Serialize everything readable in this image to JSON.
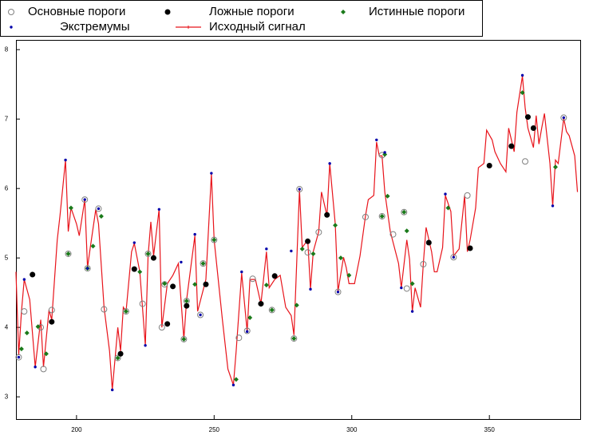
{
  "chart_data": {
    "type": "line",
    "xlim": [
      178,
      383
    ],
    "ylim": [
      2.68,
      8.14
    ],
    "xticks": [
      200,
      250,
      300,
      350
    ],
    "yticks": [
      3,
      4,
      5,
      6,
      7,
      8
    ],
    "series": [
      {
        "name": "Основные пороги",
        "type": "scatter",
        "marker": "open-circle",
        "color": "#808080",
        "x": [
          179,
          181,
          187,
          188,
          191,
          197,
          203,
          204,
          208,
          210,
          215,
          218,
          224,
          226,
          231,
          232,
          239,
          240,
          245,
          246,
          250,
          259,
          262,
          264,
          271,
          279,
          281,
          284,
          288,
          295,
          305,
          311,
          311,
          315,
          319,
          320,
          326,
          337,
          342,
          363,
          377
        ],
        "values": [
          3.57,
          4.23,
          4.0,
          3.4,
          4.25,
          5.06,
          5.84,
          4.85,
          5.71,
          4.26,
          3.56,
          4.23,
          4.34,
          5.06,
          4.0,
          4.62,
          3.83,
          4.38,
          4.18,
          4.92,
          5.26,
          3.85,
          3.95,
          4.7,
          4.25,
          3.84,
          5.99,
          5.08,
          5.37,
          4.51,
          5.59,
          5.6,
          6.48,
          5.34,
          5.66,
          4.56,
          4.91,
          5.01,
          5.9,
          6.39,
          7.02
        ]
      },
      {
        "name": "Ложные пороги",
        "type": "scatter",
        "marker": "dot",
        "color": "#000000",
        "x": [
          184,
          191,
          216,
          221,
          228,
          233,
          235,
          240,
          247,
          267,
          272,
          284,
          291,
          328,
          343,
          350,
          358,
          364,
          366
        ],
        "values": [
          4.76,
          4.08,
          3.62,
          4.84,
          5.0,
          4.05,
          4.59,
          4.31,
          4.62,
          4.34,
          4.74,
          5.24,
          5.62,
          5.22,
          5.14,
          6.33,
          6.61,
          7.03,
          6.87
        ]
      },
      {
        "name": "Истинные пороги",
        "type": "scatter",
        "marker": "diamond",
        "color": "#1a7a1a",
        "x": [
          180,
          182,
          186,
          189,
          197,
          198,
          204,
          206,
          209,
          215,
          218,
          223,
          226,
          232,
          239,
          240,
          243,
          246,
          250,
          258,
          263,
          269,
          271,
          279,
          280,
          282,
          286,
          294,
          296,
          299,
          311,
          312,
          313,
          319,
          320,
          322,
          335,
          362,
          374
        ],
        "values": [
          3.69,
          3.92,
          4.01,
          3.62,
          5.06,
          5.72,
          4.85,
          5.17,
          5.6,
          3.56,
          4.23,
          4.8,
          5.06,
          4.63,
          3.83,
          4.38,
          4.62,
          4.92,
          5.26,
          3.25,
          4.14,
          4.61,
          4.25,
          3.84,
          4.32,
          5.13,
          5.06,
          5.47,
          5.0,
          4.75,
          5.6,
          6.49,
          5.89,
          5.66,
          5.39,
          4.63,
          5.72,
          7.38,
          6.31
        ]
      },
      {
        "name": "Экстремумы",
        "type": "scatter",
        "marker": "small-dot",
        "color": "#0000aa",
        "x": [
          179,
          181,
          185,
          196,
          203,
          204,
          208,
          213,
          221,
          225,
          230,
          238,
          243,
          245,
          249,
          257,
          260,
          262,
          269,
          278,
          281,
          285,
          292,
          295,
          309,
          312,
          318,
          322,
          334,
          337,
          362,
          373,
          377
        ],
        "values": [
          3.57,
          4.69,
          3.43,
          6.41,
          5.84,
          4.85,
          5.71,
          3.1,
          5.22,
          3.74,
          5.7,
          4.94,
          5.34,
          4.18,
          6.22,
          3.17,
          4.8,
          3.94,
          5.13,
          5.1,
          5.99,
          4.55,
          6.36,
          4.51,
          6.7,
          6.52,
          4.57,
          4.23,
          5.92,
          5.01,
          7.63,
          5.75,
          7.02
        ]
      },
      {
        "name": "Исходный сигнал",
        "type": "line",
        "marker": "plus",
        "color": "#e8141b",
        "x": [
          178,
          179,
          180,
          181,
          183,
          185,
          187,
          188,
          190,
          191,
          193,
          194,
          196,
          197,
          198,
          200,
          201,
          203,
          204,
          205,
          207,
          208,
          210,
          212,
          213,
          215,
          216,
          217,
          218,
          220,
          221,
          223,
          225,
          226,
          227,
          228,
          230,
          231,
          233,
          235,
          237,
          239,
          240,
          243,
          244,
          247,
          249,
          250,
          253,
          255,
          257,
          258,
          260,
          262,
          263,
          265,
          267,
          269,
          270,
          272,
          274,
          276,
          278,
          279,
          281,
          282,
          284,
          285,
          286,
          288,
          289,
          291,
          292,
          294,
          295,
          297,
          298,
          299,
          301,
          303,
          305,
          306,
          308,
          309,
          310,
          311,
          312,
          314,
          317,
          318,
          320,
          321,
          322,
          323,
          325,
          326,
          327,
          329,
          330,
          331,
          333,
          334,
          336,
          337,
          339,
          341,
          342,
          343,
          345,
          346,
          348,
          349,
          351,
          352,
          354,
          356,
          357,
          359,
          360,
          362,
          363,
          364,
          366,
          367,
          368,
          369,
          370,
          372,
          373,
          374,
          375,
          377,
          378,
          379,
          381,
          382
        ],
        "values": [
          4.8,
          3.6,
          4.23,
          4.69,
          4.4,
          3.43,
          4.11,
          3.43,
          4.25,
          4.11,
          5.26,
          5.61,
          6.41,
          5.38,
          5.72,
          5.49,
          5.32,
          5.84,
          4.86,
          5.15,
          5.7,
          5.49,
          4.29,
          3.66,
          3.1,
          4.0,
          3.66,
          4.29,
          4.23,
          5.09,
          5.21,
          4.8,
          3.74,
          5.03,
          5.52,
          5.03,
          5.7,
          4.0,
          4.63,
          4.75,
          4.92,
          3.83,
          4.4,
          5.32,
          4.23,
          4.69,
          6.21,
          5.26,
          4.11,
          3.4,
          3.17,
          3.66,
          4.78,
          3.94,
          4.69,
          4.69,
          4.34,
          5.09,
          4.57,
          4.69,
          4.75,
          4.29,
          4.17,
          3.89,
          5.98,
          5.15,
          5.26,
          4.55,
          5.09,
          5.38,
          5.95,
          5.61,
          6.36,
          5.49,
          4.52,
          5.01,
          4.86,
          4.63,
          4.63,
          5.03,
          5.61,
          5.84,
          5.9,
          6.67,
          6.47,
          6.47,
          5.95,
          5.38,
          4.92,
          4.57,
          5.26,
          4.98,
          4.23,
          4.57,
          4.29,
          4.92,
          5.44,
          5.09,
          4.8,
          4.8,
          5.15,
          5.9,
          5.67,
          5.03,
          5.13,
          5.9,
          5.09,
          5.26,
          5.72,
          6.3,
          6.36,
          6.84,
          6.7,
          6.53,
          6.36,
          6.24,
          6.87,
          6.53,
          7.1,
          7.62,
          7.16,
          6.87,
          6.59,
          7.05,
          6.64,
          6.87,
          7.08,
          6.36,
          5.75,
          6.41,
          6.36,
          7.01,
          6.82,
          6.76,
          6.47,
          5.95
        ]
      }
    ]
  }
}
